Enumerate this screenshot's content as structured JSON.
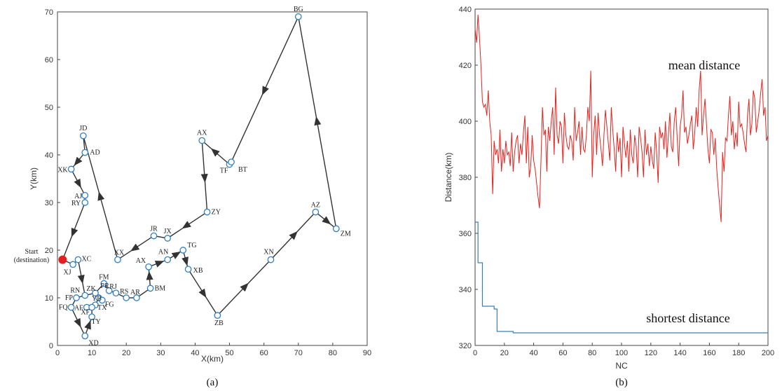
{
  "chart_data": [
    {
      "type": "scatter",
      "xlabel": "X(km)",
      "ylabel": "Y(km)",
      "xlim": [
        0,
        90
      ],
      "ylim": [
        0,
        70
      ],
      "xticks": [
        0,
        10,
        20,
        30,
        40,
        50,
        60,
        70,
        80,
        90
      ],
      "yticks": [
        0,
        10,
        20,
        30,
        40,
        50,
        60,
        70
      ],
      "caption": "(a)",
      "start_label": [
        "Start",
        "(destination)"
      ],
      "start_point": {
        "x": 1.5,
        "y": 18
      },
      "points": [
        {
          "name": "BG",
          "x": 70,
          "y": 69
        },
        {
          "name": "ZM",
          "x": 81,
          "y": 24.5
        },
        {
          "name": "AZ",
          "x": 75,
          "y": 28
        },
        {
          "name": "XN",
          "x": 62,
          "y": 18
        },
        {
          "name": "ZB",
          "x": 46.5,
          "y": 6.3
        },
        {
          "name": "XB",
          "x": 38,
          "y": 16
        },
        {
          "name": "TG",
          "x": 36.5,
          "y": 20
        },
        {
          "name": "AN",
          "x": 32,
          "y": 18
        },
        {
          "name": "AX",
          "x": 26.5,
          "y": 16.5
        },
        {
          "name": "BM",
          "x": 27,
          "y": 12
        },
        {
          "name": "AR",
          "x": 23,
          "y": 10
        },
        {
          "name": "RS",
          "x": 20,
          "y": 10
        },
        {
          "name": "RJ",
          "x": 17,
          "y": 11
        },
        {
          "name": "PR",
          "x": 15,
          "y": 11.5
        },
        {
          "name": "FM",
          "x": 13.5,
          "y": 13
        },
        {
          "name": "ZK",
          "x": 11,
          "y": 11
        },
        {
          "name": "YB",
          "x": 12,
          "y": 10
        },
        {
          "name": "FG",
          "x": 13,
          "y": 9.5
        },
        {
          "name": "TX",
          "x": 11,
          "y": 8.5
        },
        {
          "name": "AF",
          "x": 8.5,
          "y": 8
        },
        {
          "name": "XF",
          "x": 10,
          "y": 8
        },
        {
          "name": "TY",
          "x": 10,
          "y": 6
        },
        {
          "name": "XD",
          "x": 8,
          "y": 2
        },
        {
          "name": "FQ",
          "x": 4,
          "y": 8
        },
        {
          "name": "FP",
          "x": 5.5,
          "y": 10
        },
        {
          "name": "RN",
          "x": 8,
          "y": 10.5
        },
        {
          "name": "XC",
          "x": 6,
          "y": 18
        },
        {
          "name": "XJ",
          "x": 4.5,
          "y": 17
        },
        {
          "name": "RY",
          "x": 8,
          "y": 30
        },
        {
          "name": "AJ",
          "x": 8,
          "y": 31.5
        },
        {
          "name": "XK",
          "x": 4,
          "y": 37
        },
        {
          "name": "AD",
          "x": 8,
          "y": 40.5
        },
        {
          "name": "JD",
          "x": 7.5,
          "y": 44
        },
        {
          "name": "XX",
          "x": 17.5,
          "y": 18
        },
        {
          "name": "JR",
          "x": 28,
          "y": 23
        },
        {
          "name": "JX",
          "x": 32,
          "y": 22.5
        },
        {
          "name": "ZY",
          "x": 43.5,
          "y": 28
        },
        {
          "name": "AX",
          "x": 42,
          "y": 43
        },
        {
          "name": "TF",
          "x": 50,
          "y": 38
        },
        {
          "name": "BT",
          "x": 50.5,
          "y": 38.5
        }
      ],
      "route": [
        "Start",
        "XJ",
        "XC",
        "RN",
        "ZK",
        "FM",
        "PR",
        "RJ",
        "RS",
        "AR",
        "BM",
        "AX",
        "AN",
        "TG",
        "XB",
        "ZB",
        "XN",
        "AZ",
        "ZM",
        "BG",
        "BT",
        "TF",
        "AX",
        "ZY",
        "JX",
        "JR",
        "XX",
        "JD",
        "AD",
        "XK",
        "AJ",
        "RY",
        "Start"
      ],
      "subroute": [
        "RN",
        "FP",
        "FQ",
        "XD",
        "TY",
        "XF",
        "TX",
        "YB",
        "FG",
        "ZK"
      ],
      "colors": {
        "route": "#333333",
        "point_edge": "#2f7fc4",
        "start": "#e02020"
      }
    },
    {
      "type": "line",
      "xlabel": "NC",
      "ylabel": "Distance(km)",
      "xlim": [
        0,
        200
      ],
      "ylim": [
        320,
        440
      ],
      "xticks": [
        0,
        20,
        40,
        60,
        80,
        100,
        120,
        140,
        160,
        180,
        200
      ],
      "yticks": [
        320,
        340,
        360,
        380,
        400,
        420,
        440
      ],
      "caption": "(b)",
      "series": [
        {
          "name": "mean distance",
          "color": "#e8201c",
          "values": [
            433,
            428,
            438,
            430,
            420,
            407,
            405,
            406,
            402,
            411,
            400,
            395,
            374,
            393,
            388,
            390,
            385,
            397,
            382,
            390,
            385,
            393,
            388,
            389,
            384,
            396,
            382,
            389,
            393,
            395,
            385,
            392,
            388,
            396,
            402,
            385,
            398,
            380,
            384,
            395,
            386,
            383,
            378,
            373,
            369,
            386,
            405,
            395,
            397,
            382,
            398,
            393,
            400,
            405,
            388,
            412,
            395,
            392,
            400,
            398,
            385,
            403,
            395,
            391,
            390,
            395,
            393,
            386,
            405,
            393,
            396,
            400,
            388,
            398,
            390,
            389,
            395,
            405,
            400,
            418,
            380,
            395,
            402,
            388,
            403,
            395,
            390,
            384,
            395,
            404,
            398,
            392,
            386,
            405,
            397,
            390,
            382,
            396,
            389,
            394,
            380,
            398,
            392,
            387,
            393,
            382,
            397,
            388,
            385,
            395,
            391,
            380,
            398,
            394,
            389,
            380,
            397,
            388,
            392,
            384,
            391,
            386,
            383,
            396,
            389,
            378,
            398,
            394,
            396,
            390,
            400,
            387,
            395,
            403,
            391,
            389,
            400,
            405,
            394,
            384,
            398,
            402,
            411,
            396,
            398,
            392,
            395,
            399,
            402,
            390,
            396,
            405,
            398,
            411,
            418,
            395,
            402,
            408,
            399,
            390,
            385,
            397,
            396,
            388,
            394,
            383,
            376,
            370,
            364,
            389,
            382,
            394,
            393,
            402,
            409,
            395,
            400,
            390,
            396,
            391,
            407,
            398,
            399,
            396,
            392,
            389,
            402,
            408,
            395,
            399,
            411,
            408,
            396,
            400,
            404,
            410,
            415,
            402,
            405,
            393,
            395
          ]
        },
        {
          "name": "shortest distance",
          "color": "#3a7fb8",
          "values": [
            364,
            364,
            349.5,
            349.5,
            349.5,
            334,
            334,
            334,
            334,
            334,
            334,
            334,
            334,
            333,
            333,
            325,
            325,
            325,
            325,
            325,
            325,
            325,
            325,
            325,
            325,
            325,
            324.5
          ]
        }
      ]
    }
  ]
}
